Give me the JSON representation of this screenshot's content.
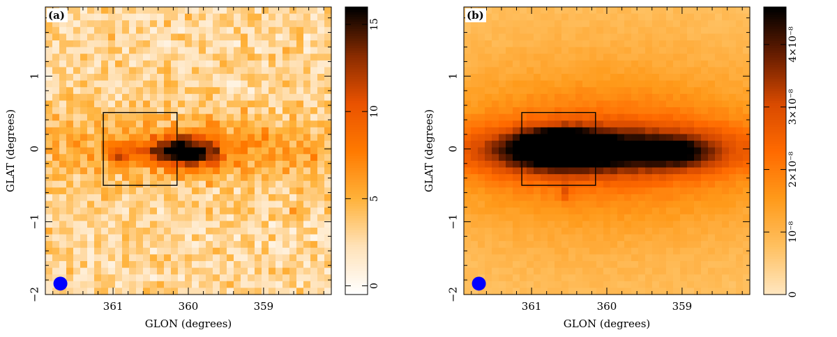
{
  "chart_data": [
    {
      "type": "heatmap",
      "panel_label": "(a)",
      "xlabel": "GLON (degrees)",
      "ylabel": "GLAT (degrees)",
      "xlim": [
        361.9,
        358.1
      ],
      "ylim": [
        -2.0,
        1.95
      ],
      "x_ticks": [
        361,
        360,
        359
      ],
      "x_tick_labels": [
        "361",
        "360",
        "359"
      ],
      "y_ticks": [
        -2,
        -1,
        0,
        1
      ],
      "y_tick_labels": [
        "−2",
        "−1",
        "0",
        "1"
      ],
      "colorbar": {
        "min": -0.5,
        "max": 16,
        "ticks": [
          0,
          5,
          10,
          15
        ],
        "tick_labels": [
          "0",
          "5",
          "10",
          "15"
        ],
        "colors": [
          "#ffffff",
          "#ffe2b8",
          "#ffb23a",
          "#ff7a00",
          "#ea5200",
          "#8a2c00",
          "#000000"
        ]
      },
      "box": {
        "l_min": 360.15,
        "l_max": 361.13,
        "b_min": -0.5,
        "b_max": 0.5
      },
      "beam": {
        "l": 361.7,
        "b": -1.85,
        "color": "#0000ff"
      },
      "features": [
        {
          "l": 359.95,
          "b": -0.05,
          "amp": 9,
          "sl": 0.25,
          "sb": 0.16
        },
        {
          "l": 360.18,
          "b": -0.02,
          "amp": 5,
          "sl": 0.16,
          "sb": 0.12
        },
        {
          "l": 359.72,
          "b": 0.02,
          "amp": 3,
          "sl": 0.07,
          "sb": 0.07
        },
        {
          "l": 360.5,
          "b": 0.0,
          "amp": 3.5,
          "sl": 0.1,
          "sb": 0.08
        },
        {
          "l": 360.95,
          "b": -0.1,
          "amp": 4,
          "sl": 0.09,
          "sb": 0.1
        },
        {
          "l": 360.7,
          "b": -0.05,
          "amp": 2.5,
          "sl": 0.08,
          "sb": 0.07
        },
        {
          "l": 360.35,
          "b": -0.05,
          "amp": 2.5,
          "sl": 0.1,
          "sb": 0.08
        },
        {
          "l": 359.32,
          "b": -0.85,
          "amp": 3,
          "sl": 0.05,
          "sb": 0.05
        },
        {
          "l": 358.55,
          "b": -0.85,
          "amp": 3,
          "sl": 0.05,
          "sb": 0.05
        },
        {
          "l": 360.0,
          "b": 0.0,
          "amp": 4,
          "sl": 1.6,
          "sb": 0.3
        }
      ]
    },
    {
      "type": "heatmap",
      "panel_label": "(b)",
      "xlabel": "GLON (degrees)",
      "ylabel": "GLAT (degrees)",
      "xlim": [
        361.9,
        358.1
      ],
      "ylim": [
        -2.0,
        1.95
      ],
      "x_ticks": [
        361,
        360,
        359
      ],
      "x_tick_labels": [
        "361",
        "360",
        "359"
      ],
      "y_ticks": [
        -2,
        -1,
        0,
        1
      ],
      "y_tick_labels": [
        "−2",
        "−1",
        "0",
        "1"
      ],
      "colorbar": {
        "min": 0,
        "max": 4.6e-08,
        "ticks": [
          0,
          1e-08,
          2e-08,
          3e-08,
          4e-08
        ],
        "tick_labels": [
          "0",
          "10⁻⁸",
          "2×10⁻⁸",
          "3×10⁻⁸",
          "4×10⁻⁸"
        ],
        "colors": [
          "#ffe6bf",
          "#ffc060",
          "#ff9a1a",
          "#ff6a00",
          "#d84a00",
          "#6a1e00",
          "#000000"
        ]
      },
      "box": {
        "l_min": 360.15,
        "l_max": 361.13,
        "b_min": -0.5,
        "b_max": 0.5
      },
      "beam": {
        "l": 361.7,
        "b": -1.85,
        "color": "#0000ff"
      },
      "features": [
        {
          "l": 360.0,
          "b": -0.02,
          "amp": 2.2e-08,
          "sl": 1.3,
          "sb": 0.22
        },
        {
          "l": 360.65,
          "b": -0.05,
          "amp": 1.6e-08,
          "sl": 0.55,
          "sb": 0.2
        },
        {
          "l": 360.7,
          "b": 0.05,
          "amp": 2.4e-08,
          "sl": 0.3,
          "sb": 0.13
        },
        {
          "l": 360.62,
          "b": 0.03,
          "amp": 2.2e-08,
          "sl": 0.07,
          "sb": 0.07
        },
        {
          "l": 359.1,
          "b": -0.05,
          "amp": 1.2e-08,
          "sl": 0.35,
          "sb": 0.15
        },
        {
          "l": 360.45,
          "b": 0.1,
          "amp": 1e-08,
          "sl": 0.25,
          "sb": 0.12
        },
        {
          "l": 360.55,
          "b": -0.6,
          "amp": 8e-09,
          "sl": 0.05,
          "sb": 0.1
        },
        {
          "l": 360.0,
          "b": 0.0,
          "amp": 1.2e-08,
          "sl": 1.8,
          "sb": 0.6
        },
        {
          "l": 360.0,
          "b": 0.0,
          "amp": 8e-09,
          "sl": 2.5,
          "sb": 1.6
        }
      ]
    }
  ]
}
